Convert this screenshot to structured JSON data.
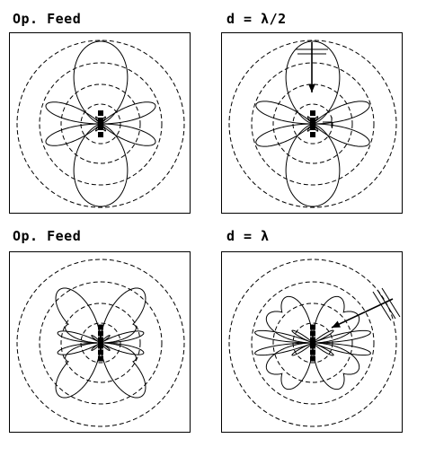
{
  "panels": [
    {
      "title": "Op. Feed"
    },
    {
      "title": "d = λ/2"
    },
    {
      "title": "Op. Feed"
    },
    {
      "title": "d = λ"
    }
  ],
  "icons": [
    "element-feed-icon",
    "arrow-icon",
    "ground-plane-icon"
  ]
}
